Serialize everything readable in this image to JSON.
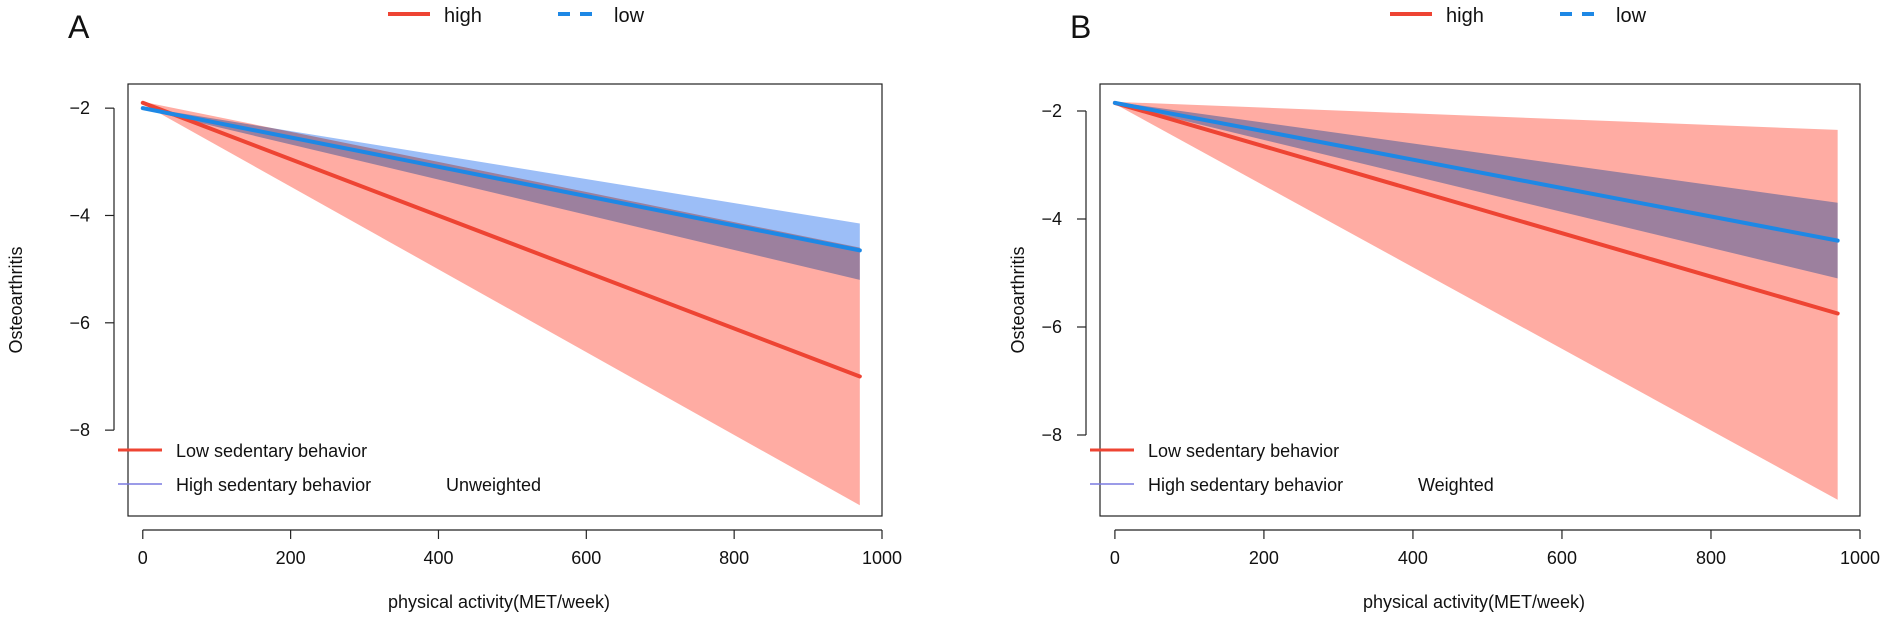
{
  "chart_data": [
    {
      "panel_label": "A",
      "type": "line",
      "title": "",
      "xlabel": "physical activity(MET/week)",
      "ylabel": "Osteoarthritis",
      "xlim": [
        -20,
        1000
      ],
      "ylim": [
        -9.6,
        -1.55
      ],
      "xticks": [
        0,
        200,
        400,
        600,
        800,
        1000
      ],
      "yticks": [
        -2,
        -4,
        -6,
        -8
      ],
      "top_legend": [
        {
          "label": "high",
          "color": "#ee4433",
          "style": "solid"
        },
        {
          "label": "low",
          "color": "#1e88e5",
          "style": "dashed"
        }
      ],
      "inset_legend": [
        {
          "label": "Low sedentary behavior",
          "color": "#ee4433"
        },
        {
          "label": "High sedentary behavior",
          "color": "#7a7ae0"
        }
      ],
      "annotation": "Unweighted",
      "series": [
        {
          "name": "Low sedentary behavior",
          "color": "#ee4433",
          "band_color": "#ff9a8f",
          "x": [
            0,
            970
          ],
          "y": [
            -1.9,
            -7.0
          ],
          "lower": [
            -1.92,
            -9.4
          ],
          "upper": [
            -1.88,
            -4.6
          ]
        },
        {
          "name": "High sedentary behavior",
          "color": "#1e88e5",
          "band_color": "#86b0f5",
          "x": [
            0,
            970
          ],
          "y": [
            -2.0,
            -4.65
          ],
          "lower": [
            -2.02,
            -5.2
          ],
          "upper": [
            -1.98,
            -4.15
          ]
        }
      ]
    },
    {
      "panel_label": "B",
      "type": "line",
      "title": "",
      "xlabel": "physical activity(MET/week)",
      "ylabel": "Osteoarthritis",
      "xlim": [
        -20,
        1000
      ],
      "ylim": [
        -9.5,
        -1.5
      ],
      "xticks": [
        0,
        200,
        400,
        600,
        800,
        1000
      ],
      "yticks": [
        -2,
        -4,
        -6,
        -8
      ],
      "top_legend": [
        {
          "label": "high",
          "color": "#ee4433",
          "style": "solid"
        },
        {
          "label": "low",
          "color": "#1e88e5",
          "style": "dashed"
        }
      ],
      "inset_legend": [
        {
          "label": "Low sedentary behavior",
          "color": "#ee4433"
        },
        {
          "label": "High sedentary behavior",
          "color": "#7a7ae0"
        }
      ],
      "annotation": "Weighted",
      "series": [
        {
          "name": "Low sedentary behavior",
          "color": "#ee4433",
          "band_color": "#ff9a8f",
          "x": [
            0,
            970
          ],
          "y": [
            -1.85,
            -5.75
          ],
          "lower": [
            -1.87,
            -9.2
          ],
          "upper": [
            -1.83,
            -2.35
          ]
        },
        {
          "name": "High sedentary behavior",
          "color": "#1e88e5",
          "band_color": "#86b0f5",
          "x": [
            0,
            970
          ],
          "y": [
            -1.85,
            -4.4
          ],
          "lower": [
            -1.87,
            -5.1
          ],
          "upper": [
            -1.83,
            -3.7
          ]
        }
      ]
    }
  ]
}
